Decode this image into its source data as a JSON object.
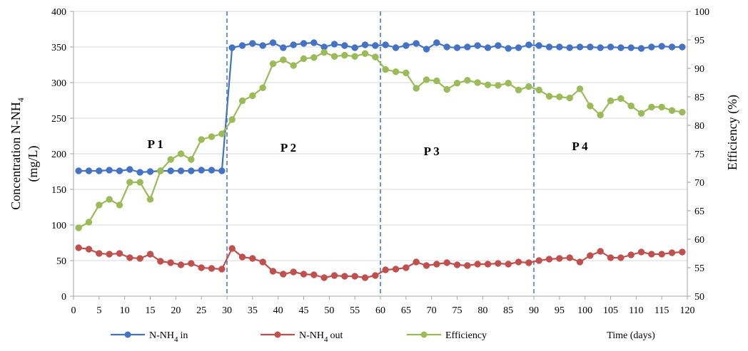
{
  "chart_data": {
    "type": "line",
    "title": "",
    "xlabel": "Time (days)",
    "ylabel_left_line1": "Concentration N-NH",
    "ylabel_left_sub": "4",
    "ylabel_left_line2": "(mg/L)",
    "ylabel_right": "Efficiency (%)",
    "xlim": [
      0,
      120
    ],
    "ylim_left": [
      0,
      400
    ],
    "ylim_right": [
      50,
      100
    ],
    "x_ticks": [
      0,
      5,
      10,
      15,
      20,
      25,
      30,
      35,
      40,
      45,
      50,
      55,
      60,
      65,
      70,
      75,
      80,
      85,
      90,
      95,
      100,
      105,
      110,
      115,
      120
    ],
    "y_left_ticks": [
      0,
      50,
      100,
      150,
      200,
      250,
      300,
      350,
      400
    ],
    "y_right_ticks": [
      50,
      55,
      60,
      65,
      70,
      75,
      80,
      85,
      90,
      95,
      100
    ],
    "grid": "horizontal",
    "legend_position": "bottom",
    "phase_lines": [
      30,
      60,
      90
    ],
    "phase_labels": [
      {
        "text": "P 1",
        "x": 16,
        "y": 208
      },
      {
        "text": "P 2",
        "x": 42,
        "y": 203
      },
      {
        "text": "P 3",
        "x": 70,
        "y": 198
      },
      {
        "text": "P 4",
        "x": 99,
        "y": 205
      }
    ],
    "series": [
      {
        "name": "N-NH4 in",
        "name_main": "N-NH",
        "name_sub": "4",
        "name_tail": " in",
        "axis": "left",
        "color": "#4472C4",
        "x": [
          1,
          3,
          5,
          7,
          9,
          11,
          13,
          15,
          17,
          19,
          21,
          23,
          25,
          27,
          29,
          31,
          33,
          35,
          37,
          39,
          41,
          43,
          45,
          47,
          49,
          51,
          53,
          55,
          57,
          59,
          61,
          63,
          65,
          67,
          69,
          71,
          73,
          75,
          77,
          79,
          81,
          83,
          85,
          87,
          89,
          91,
          93,
          95,
          97,
          99,
          101,
          103,
          105,
          107,
          109,
          111,
          113,
          115,
          117,
          119
        ],
        "values": [
          176,
          176,
          176,
          177,
          176,
          178,
          174,
          175,
          176,
          176,
          176,
          176,
          177,
          177,
          176,
          349,
          352,
          355,
          352,
          356,
          349,
          353,
          355,
          356,
          350,
          354,
          352,
          349,
          353,
          352,
          353,
          349,
          352,
          355,
          347,
          356,
          350,
          349,
          350,
          352,
          349,
          352,
          348,
          349,
          353,
          352,
          350,
          350,
          349,
          350,
          350,
          349,
          350,
          349,
          349,
          348,
          350,
          351,
          350,
          350
        ]
      },
      {
        "name": "N-NH4 out",
        "name_main": "N-NH",
        "name_sub": "4",
        "name_tail": "out",
        "axis": "left",
        "color": "#C0504D",
        "x": [
          1,
          3,
          5,
          7,
          9,
          11,
          13,
          15,
          17,
          19,
          21,
          23,
          25,
          27,
          29,
          31,
          33,
          35,
          37,
          39,
          41,
          43,
          45,
          47,
          49,
          51,
          53,
          55,
          57,
          59,
          61,
          63,
          65,
          67,
          69,
          71,
          73,
          75,
          77,
          79,
          81,
          83,
          85,
          87,
          89,
          91,
          93,
          95,
          97,
          99,
          101,
          103,
          105,
          107,
          109,
          111,
          113,
          115,
          117,
          119
        ],
        "values": [
          68,
          66,
          60,
          59,
          60,
          54,
          53,
          59,
          49,
          47,
          44,
          46,
          40,
          39,
          38,
          67,
          55,
          53,
          48,
          35,
          31,
          34,
          31,
          30,
          26,
          29,
          28,
          28,
          26,
          29,
          37,
          38,
          40,
          48,
          43,
          45,
          47,
          44,
          43,
          45,
          45,
          46,
          45,
          48,
          47,
          50,
          52,
          53,
          54,
          48,
          57,
          63,
          54,
          54,
          58,
          62,
          59,
          59,
          61,
          62
        ]
      },
      {
        "name": "Efficiency",
        "name_main": "Efficiency",
        "name_sub": "",
        "name_tail": "",
        "axis": "right",
        "color": "#9BBB59",
        "x": [
          1,
          3,
          5,
          7,
          9,
          11,
          13,
          15,
          17,
          19,
          21,
          23,
          25,
          27,
          29,
          31,
          33,
          35,
          37,
          39,
          41,
          43,
          45,
          47,
          49,
          51,
          53,
          55,
          57,
          59,
          61,
          63,
          65,
          67,
          69,
          71,
          73,
          75,
          77,
          79,
          81,
          83,
          85,
          87,
          89,
          91,
          93,
          95,
          97,
          99,
          101,
          103,
          105,
          107,
          109,
          111,
          113,
          115,
          117,
          119
        ],
        "values": [
          62,
          63,
          66,
          67,
          66,
          70,
          70,
          67,
          72,
          74,
          75,
          74,
          77.5,
          78,
          78.5,
          81,
          84.3,
          85.2,
          86.6,
          90.8,
          91.5,
          90.5,
          91.7,
          91.9,
          92.8,
          92.1,
          92.3,
          92.1,
          92.6,
          92,
          89.8,
          89.4,
          89.2,
          86.5,
          88,
          87.8,
          86.3,
          87.4,
          87.9,
          87.5,
          87.1,
          87,
          87.4,
          86.2,
          86.8,
          86.2,
          85.1,
          85,
          84.8,
          86.4,
          83.4,
          81.8,
          84.3,
          84.7,
          83.4,
          82.1,
          83.2,
          83.2,
          82.6,
          82.3
        ]
      }
    ]
  }
}
